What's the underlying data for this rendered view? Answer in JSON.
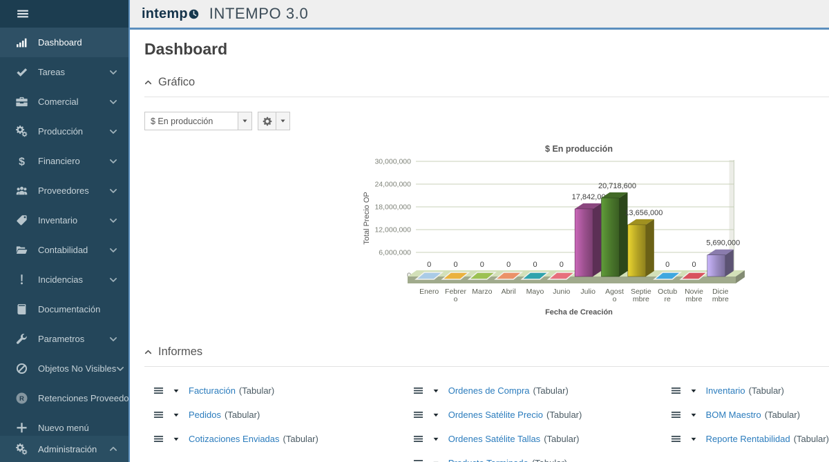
{
  "app": {
    "logo_text": "intemp",
    "title": "INTEMPO 3.0"
  },
  "page": {
    "title": "Dashboard"
  },
  "sidebar": {
    "items": [
      {
        "label": "Dashboard",
        "icon": "dashboard-chart-icon",
        "has_children": false,
        "active": true
      },
      {
        "label": "Tareas",
        "icon": "check-icon",
        "has_children": true,
        "active": false
      },
      {
        "label": "Comercial",
        "icon": "briefcase-icon",
        "has_children": true,
        "active": false
      },
      {
        "label": "Producción",
        "icon": "gears-icon",
        "has_children": true,
        "active": false
      },
      {
        "label": "Financiero",
        "icon": "dollar-icon",
        "has_children": true,
        "active": false
      },
      {
        "label": "Proveedores",
        "icon": "users-icon",
        "has_children": true,
        "active": false
      },
      {
        "label": "Inventario",
        "icon": "tags-icon",
        "has_children": true,
        "active": false
      },
      {
        "label": "Contabilidad",
        "icon": "folder-open-icon",
        "has_children": true,
        "active": false
      },
      {
        "label": "Incidencias",
        "icon": "exclamation-icon",
        "has_children": true,
        "active": false
      },
      {
        "label": "Documentación",
        "icon": "book-icon",
        "has_children": false,
        "active": false
      },
      {
        "label": "Parametros",
        "icon": "wrench-icon",
        "has_children": true,
        "active": false
      },
      {
        "label": "Objetos No Visibles",
        "icon": "ban-icon",
        "has_children": true,
        "active": false
      },
      {
        "label": "Retenciones Proveedor",
        "icon": "r-badge-icon",
        "has_children": false,
        "active": false
      },
      {
        "label": "Nuevo menú",
        "icon": "plus-icon",
        "has_children": false,
        "active": false
      }
    ],
    "bottom_item": {
      "label": "Administración",
      "icon": "gears-icon",
      "chevron": "up"
    }
  },
  "grafico": {
    "title": "Gráfico",
    "selector_value": "$ En producción"
  },
  "informes": {
    "title": "Informes",
    "columns": [
      [
        {
          "name": "Facturación",
          "type_label": "(Tabular)"
        },
        {
          "name": "Pedidos",
          "type_label": "(Tabular)"
        },
        {
          "name": "Cotizaciones Enviadas",
          "type_label": "(Tabular)"
        }
      ],
      [
        {
          "name": "Ordenes de Compra",
          "type_label": "(Tabular)"
        },
        {
          "name": "Ordenes Satélite Precio",
          "type_label": "(Tabular)"
        },
        {
          "name": "Ordenes Satélite Tallas",
          "type_label": "(Tabular)"
        },
        {
          "name": "Producto Terminado",
          "type_label": "(Tabular)"
        }
      ],
      [
        {
          "name": "Inventario",
          "type_label": "(Tabular)"
        },
        {
          "name": "BOM Maestro",
          "type_label": "(Tabular)"
        },
        {
          "name": "Reporte Rentabilidad",
          "type_label": "(Tabular)"
        }
      ]
    ]
  },
  "chart_data": {
    "type": "bar",
    "style": "3d-bar",
    "title": "$ En producción",
    "xlabel": "Fecha de Creación",
    "ylabel": "Total Precio OP",
    "ylim": [
      0,
      30000000
    ],
    "ytick_step": 6000000,
    "grid": true,
    "categories": [
      "Enero",
      "Febrero",
      "Marzo",
      "Abril",
      "Mayo",
      "Junio",
      "Julio",
      "Agosto",
      "Septiembre",
      "Octubre",
      "Noviembre",
      "Diciembre"
    ],
    "category_tick_lines": [
      [
        "Enero"
      ],
      [
        "Febrer",
        "o"
      ],
      [
        "Marzo"
      ],
      [
        "Abril"
      ],
      [
        "Mayo"
      ],
      [
        "Junio"
      ],
      [
        "Julio"
      ],
      [
        "Agost",
        "o"
      ],
      [
        "Septie",
        "mbre"
      ],
      [
        "Octub",
        "re"
      ],
      [
        "Novie",
        "mbre"
      ],
      [
        "Dicie",
        "mbre"
      ]
    ],
    "values": [
      0,
      0,
      0,
      0,
      0,
      0,
      17842000,
      20718600,
      13656000,
      0,
      0,
      5690000
    ],
    "value_labels": [
      "0",
      "0",
      "0",
      "0",
      "0",
      "0",
      "17,842,000",
      "20,718,600",
      "13,656,000",
      "0",
      "0",
      "5,690,000"
    ],
    "bar_colors": [
      "#aacbe6",
      "#eab23e",
      "#9cc153",
      "#eb9268",
      "#2fa3ad",
      "#e7707c",
      "#9a4f8d",
      "#49762b",
      "#b2a124",
      "#3fa8e0",
      "#d8535e",
      "#998ac0"
    ],
    "grid_color": "#c9d1ba",
    "platform_color": "#a0aa8c",
    "accent_colors": {
      "header_line": "#5b8fbe",
      "sidebar_bg": "#24465a",
      "link": "#2b7cbd"
    }
  }
}
